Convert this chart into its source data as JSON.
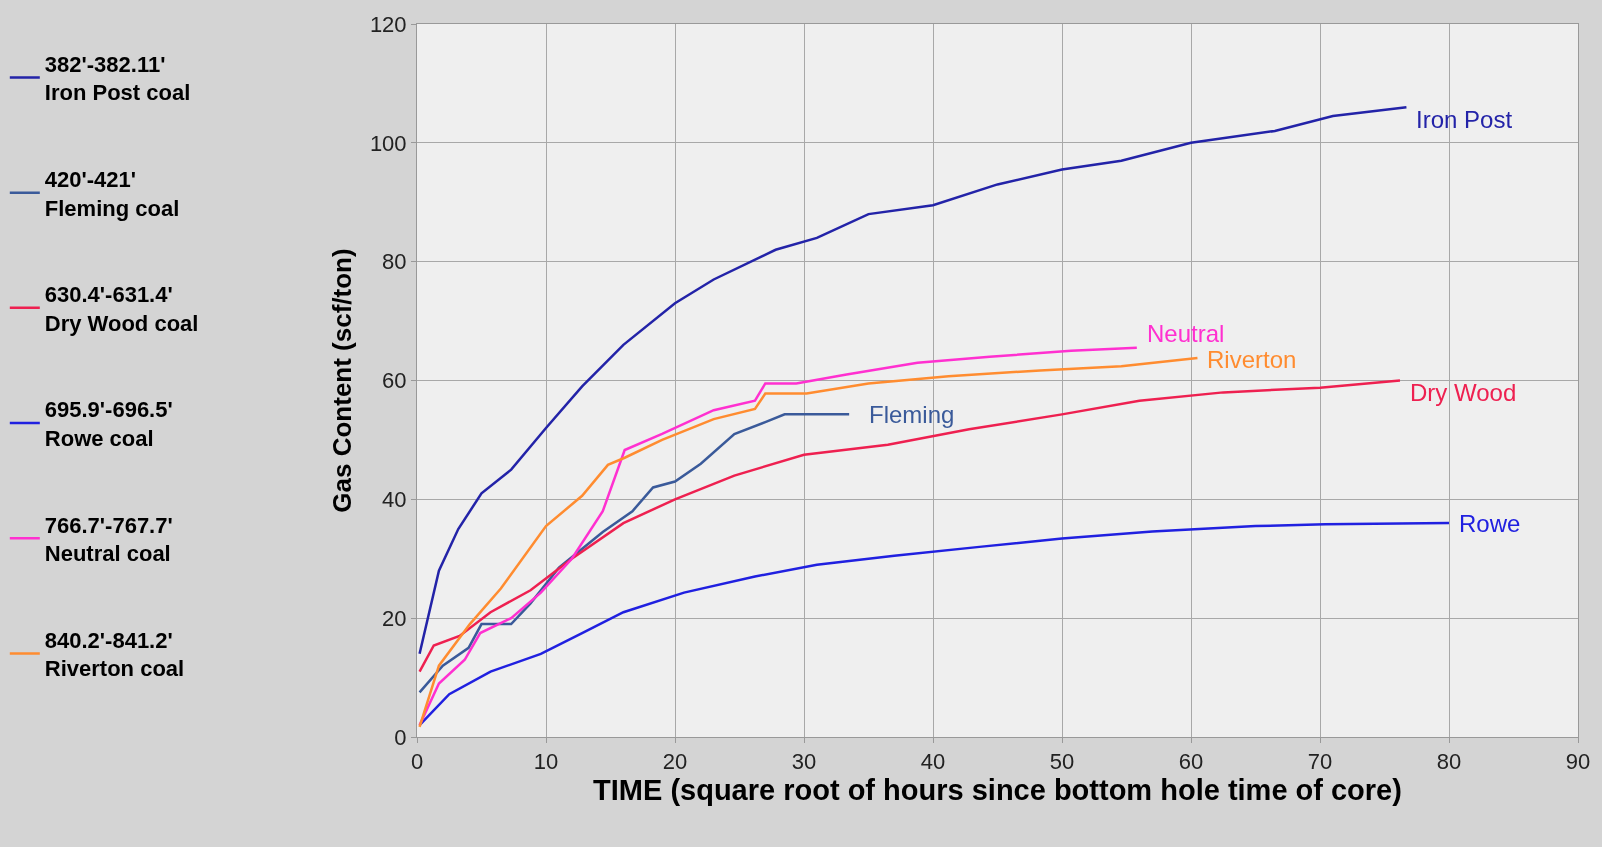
{
  "chart_data": {
    "type": "line",
    "xlabel": "TIME (square root of hours since bottom hole time of core)",
    "ylabel": "Gas Content (scf/ton)",
    "xlim": [
      0,
      90
    ],
    "xticks": [
      0,
      10,
      20,
      30,
      40,
      50,
      60,
      70,
      80,
      90
    ],
    "ylim": [
      0,
      120
    ],
    "yticks": [
      0,
      20,
      40,
      60,
      80,
      100,
      120
    ],
    "grid": true,
    "legend": "left",
    "marker": "none",
    "line_style": "solid",
    "series": [
      {
        "name": "382'-382.11'\nIron Post coal",
        "color": "#2323a8",
        "x": [
          0.2,
          1.7,
          3.2,
          5,
          7.3,
          10,
          12.8,
          16,
          20,
          23,
          27.8,
          31,
          35,
          40,
          45,
          50,
          54.6,
          60,
          66.5,
          71,
          76.7
        ],
        "values": [
          14,
          28,
          35,
          41,
          45,
          52,
          59,
          66,
          73,
          77,
          82,
          84,
          88,
          89.5,
          93,
          95.5,
          97,
          100,
          102,
          104.5,
          106
        ]
      },
      {
        "name": "420'-421'\nFleming coal",
        "color": "#3a5a9a",
        "x": [
          0.2,
          2,
          4,
          5,
          7.3,
          8.8,
          11,
          14.4,
          16.7,
          18.3,
          20,
          22,
          24.6,
          27,
          28.5,
          31,
          33.5
        ],
        "values": [
          7.5,
          12,
          15,
          19,
          19,
          22.5,
          28.5,
          34.5,
          38,
          42,
          43,
          46,
          51,
          53,
          54.3,
          54.3,
          54.3
        ]
      },
      {
        "name": "630.4'-631.4'\nDry Wood coal",
        "color": "#ee2050",
        "x": [
          0.2,
          1.3,
          3.3,
          5.7,
          8.8,
          12,
          16,
          20,
          24.6,
          30,
          36.5,
          42.8,
          50,
          56,
          62.5,
          70,
          76.2
        ],
        "values": [
          11,
          15.4,
          17,
          21,
          24.7,
          30,
          36,
          40,
          44,
          47.5,
          49.2,
          51.8,
          54.3,
          56.6,
          58,
          58.8,
          60
        ]
      },
      {
        "name": "695.9'-696.5'\nRowe coal",
        "color": "#2020e0",
        "x": [
          0.2,
          2.5,
          5.7,
          9.6,
          12.8,
          16,
          20.7,
          26.2,
          31,
          37,
          43.6,
          50,
          57,
          65,
          70.4,
          80
        ],
        "values": [
          2,
          7.2,
          11,
          14,
          17.5,
          21,
          24.3,
          27,
          29,
          30.5,
          32,
          33.4,
          34.6,
          35.5,
          35.8,
          36
        ]
      },
      {
        "name": "766.7'-767.7'\nNeutral coal",
        "color": "#ff30d0",
        "x": [
          0.2,
          1.7,
          3.7,
          4.9,
          7.3,
          9.6,
          12,
          14.4,
          16.1,
          19,
          23,
          26.2,
          27,
          29.4,
          33.3,
          38.8,
          44.4,
          50.7,
          55.8
        ],
        "values": [
          2,
          9,
          13,
          17.5,
          20,
          24.3,
          30,
          38,
          48.3,
          51,
          55,
          56.6,
          59.5,
          59.5,
          61,
          63,
          64,
          65,
          65.5
        ]
      },
      {
        "name": "840.2'-841.2'\nRiverton coal",
        "color": "#ff8c30",
        "x": [
          0.2,
          1.7,
          4.1,
          6.5,
          10,
          12.8,
          14.8,
          16.1,
          19,
          23,
          26.2,
          27,
          30.2,
          35,
          41.2,
          48.3,
          54.6,
          60.5
        ],
        "values": [
          1.7,
          12,
          19,
          25,
          35.5,
          40.6,
          45.8,
          47,
          50,
          53.5,
          55.2,
          57.8,
          57.8,
          59.5,
          60.7,
          61.7,
          62.4,
          63.8
        ]
      }
    ],
    "annotations": [
      "Iron Post",
      "Fleming",
      "Dry Wood",
      "Rowe",
      "Neutral",
      "Riverton"
    ]
  }
}
